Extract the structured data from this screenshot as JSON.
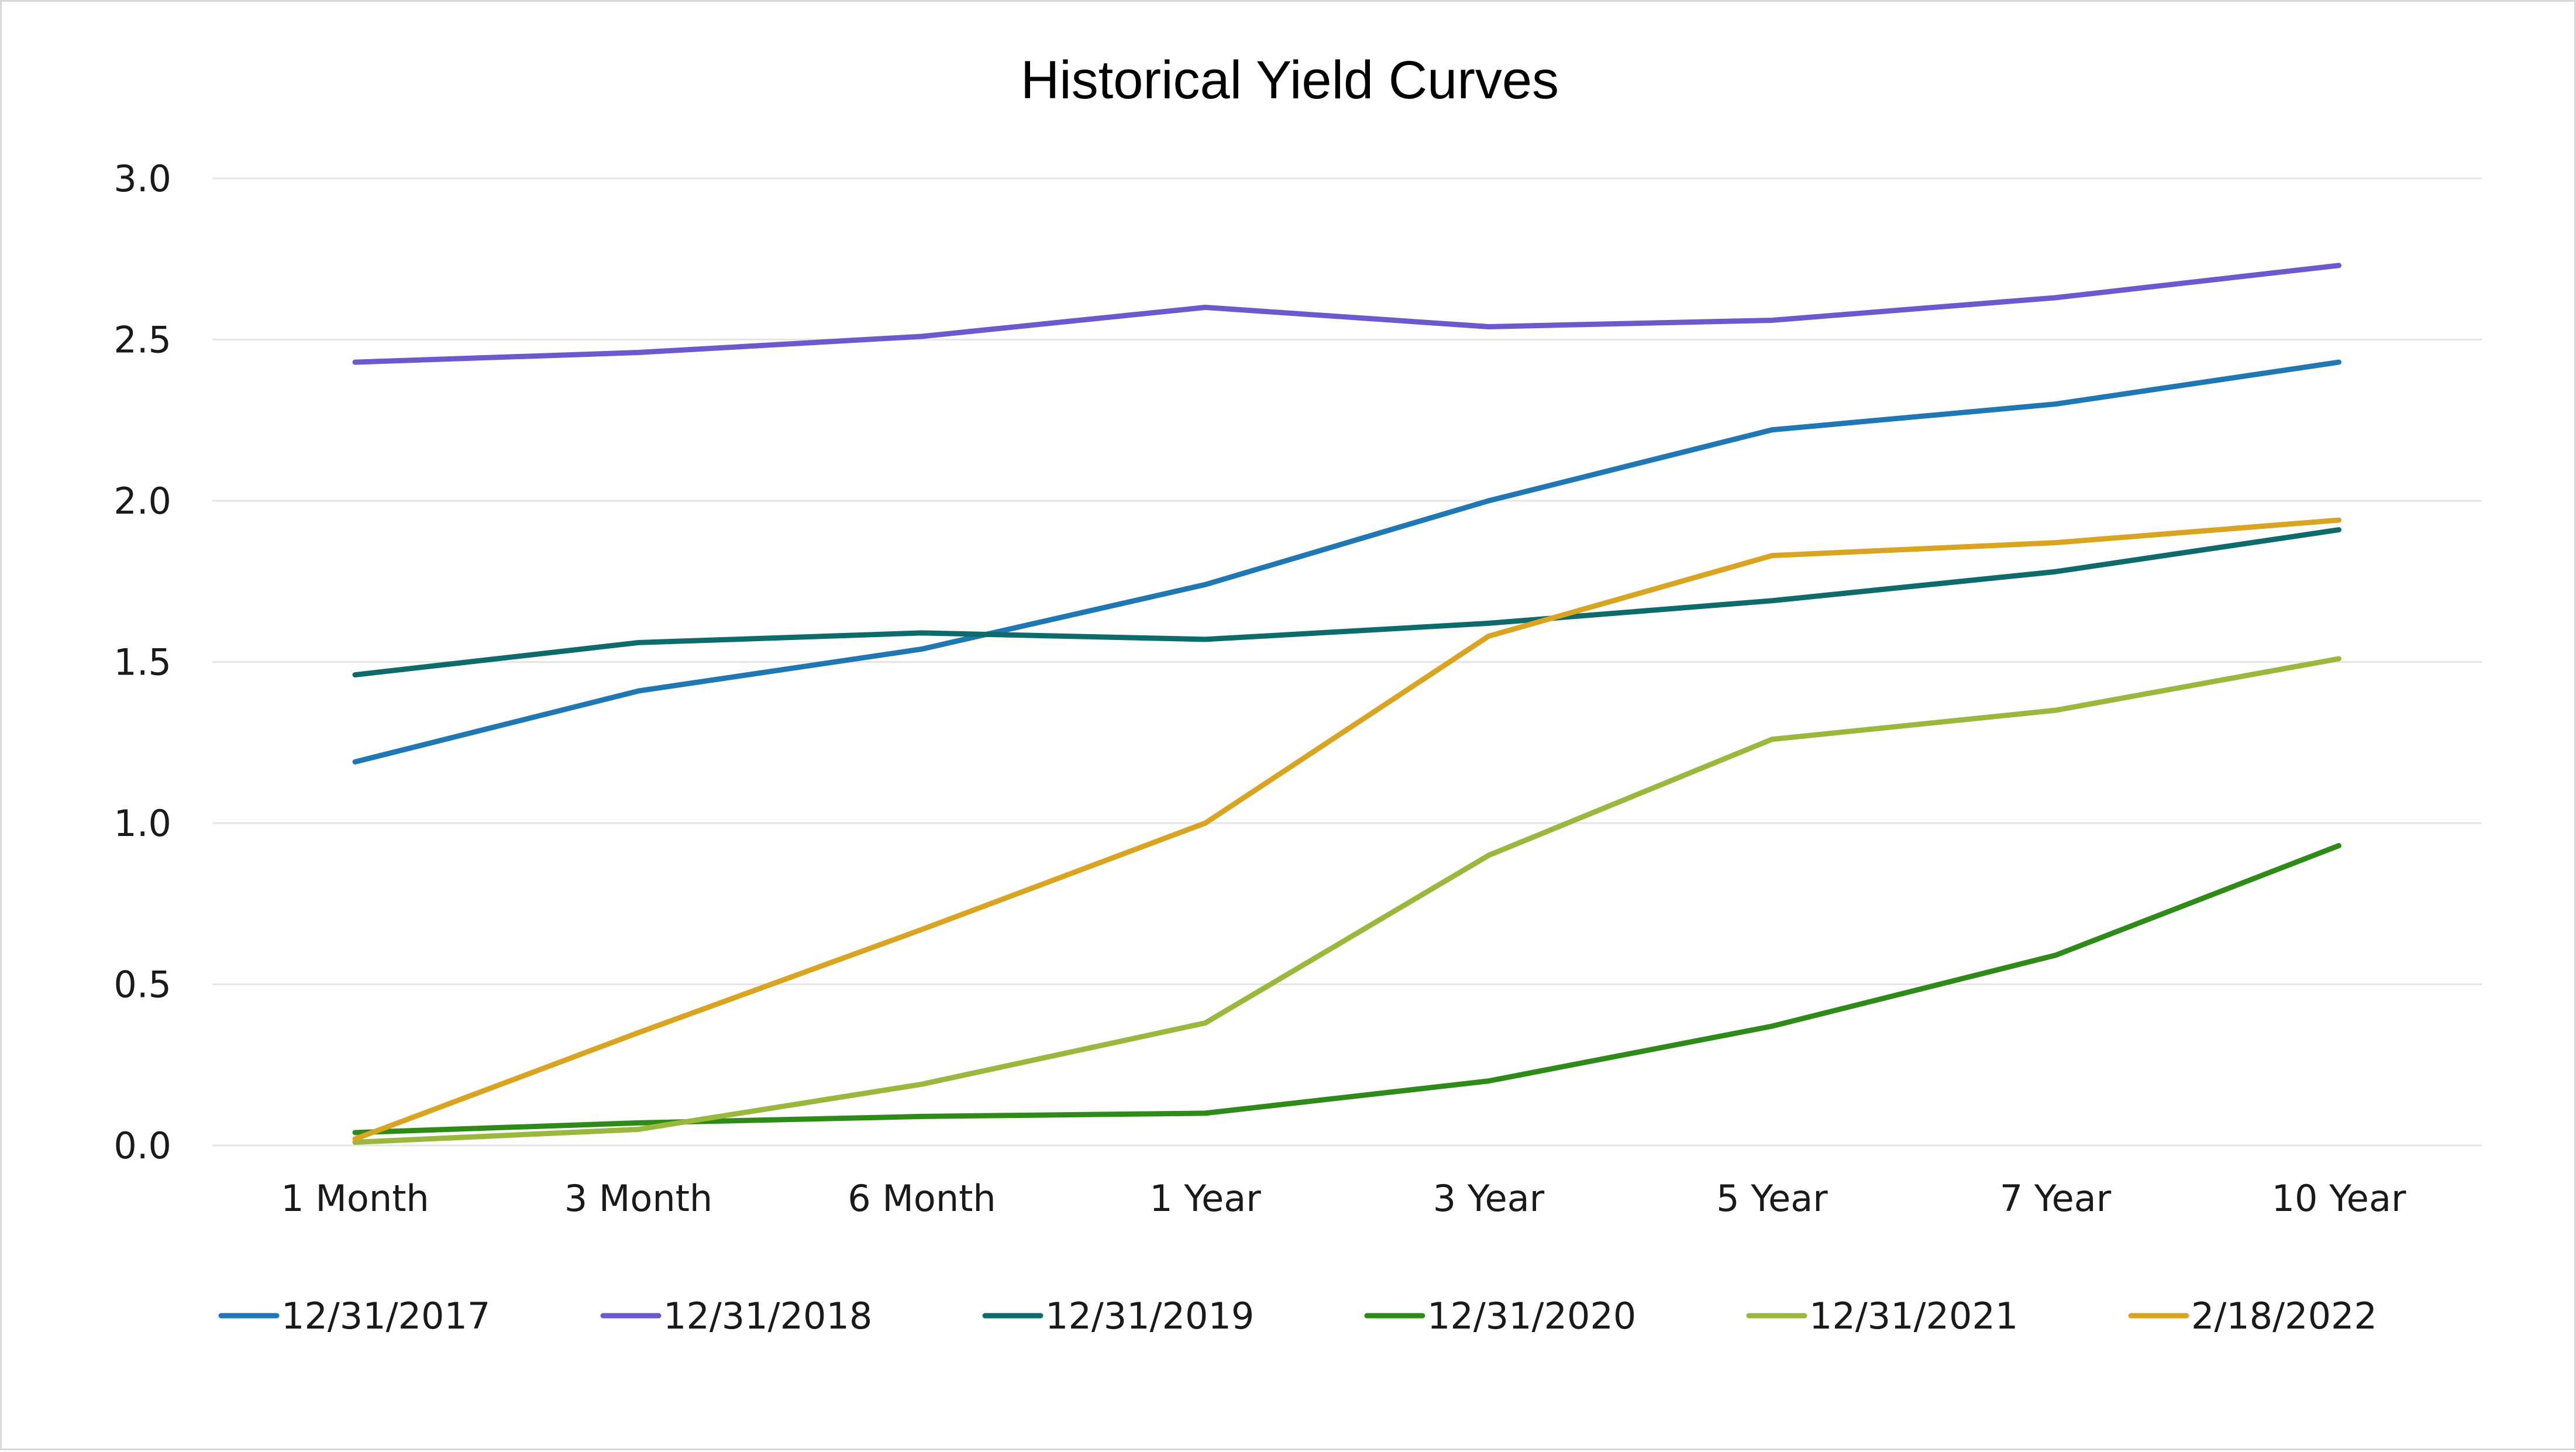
{
  "chart_data": {
    "type": "line",
    "title": "Historical Yield Curves",
    "xlabel": "",
    "ylabel": "",
    "categories": [
      "1 Month",
      "3 Month",
      "6 Month",
      "1 Year",
      "3 Year",
      "5 Year",
      "7 Year",
      "10 Year"
    ],
    "y_ticks": [
      "0.0",
      "0.5",
      "1.0",
      "1.5",
      "2.0",
      "2.5",
      "3.0"
    ],
    "ylim": [
      0,
      3.0
    ],
    "grid": true,
    "legend_position": "bottom",
    "series": [
      {
        "name": "12/31/2017",
        "color": "#1f77b4",
        "values": [
          1.19,
          1.41,
          1.54,
          1.74,
          2.0,
          2.22,
          2.3,
          2.43
        ]
      },
      {
        "name": "12/31/2018",
        "color": "#6a5acd",
        "values": [
          2.43,
          2.46,
          2.51,
          2.6,
          2.54,
          2.56,
          2.63,
          2.73
        ]
      },
      {
        "name": "12/31/2019",
        "color": "#0e6b6b",
        "values": [
          1.46,
          1.56,
          1.59,
          1.57,
          1.62,
          1.69,
          1.78,
          1.91
        ]
      },
      {
        "name": "12/31/2020",
        "color": "#2e8b17",
        "values": [
          0.04,
          0.07,
          0.09,
          0.1,
          0.2,
          0.37,
          0.59,
          0.93
        ]
      },
      {
        "name": "12/31/2021",
        "color": "#9ab83c",
        "values": [
          0.01,
          0.05,
          0.19,
          0.38,
          0.9,
          1.26,
          1.35,
          1.51
        ]
      },
      {
        "name": "2/18/2022",
        "color": "#d9a520",
        "values": [
          0.02,
          0.35,
          0.67,
          1.0,
          1.58,
          1.83,
          1.87,
          1.94
        ]
      }
    ]
  }
}
